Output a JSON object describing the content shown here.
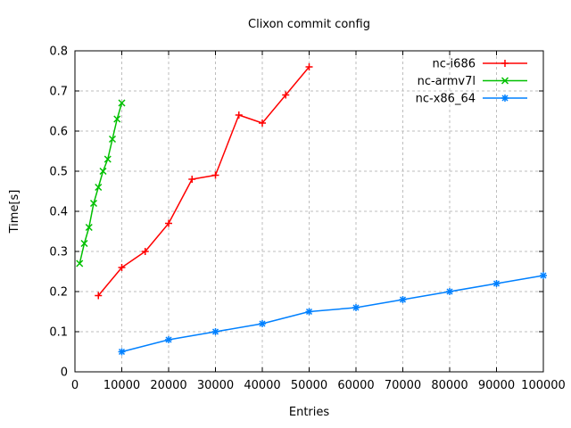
{
  "window": {
    "background": "#ffffff"
  },
  "chart_data": {
    "type": "line",
    "title": "Clixon commit config",
    "xlabel": "Entries",
    "ylabel": "Time[s]",
    "xlim": [
      0,
      100000
    ],
    "ylim": [
      0,
      0.8
    ],
    "grid": true,
    "legend_position": "top-right-inside",
    "x_ticks": {
      "values": [
        0,
        10000,
        20000,
        30000,
        40000,
        50000,
        60000,
        70000,
        80000,
        90000,
        100000
      ],
      "labels": [
        "0",
        "10000",
        "20000",
        "30000",
        "40000",
        "50000",
        "60000",
        "70000",
        "80000",
        "90000",
        "100000"
      ]
    },
    "y_ticks": {
      "values": [
        0,
        0.1,
        0.2,
        0.3,
        0.4,
        0.5,
        0.6,
        0.7,
        0.8
      ],
      "labels": [
        "0",
        "0.1",
        "0.2",
        "0.3",
        "0.4",
        "0.5",
        "0.6",
        "0.7",
        "0.8"
      ]
    },
    "series": [
      {
        "name": "nc-i686",
        "color": "#ff0000",
        "marker": "plus",
        "x": [
          5000,
          10000,
          15000,
          20000,
          25000,
          30000,
          35000,
          40000,
          45000,
          50000
        ],
        "y": [
          0.19,
          0.26,
          0.3,
          0.37,
          0.48,
          0.49,
          0.64,
          0.62,
          0.69,
          0.76
        ]
      },
      {
        "name": "nc-armv7l",
        "color": "#00c000",
        "marker": "cross",
        "x": [
          1000,
          2000,
          3000,
          4000,
          5000,
          6000,
          7000,
          8000,
          9000,
          10000
        ],
        "y": [
          0.27,
          0.32,
          0.36,
          0.42,
          0.46,
          0.5,
          0.53,
          0.58,
          0.63,
          0.67
        ]
      },
      {
        "name": "nc-x86_64",
        "color": "#0080ff",
        "marker": "asterisk",
        "x": [
          10000,
          20000,
          30000,
          40000,
          50000,
          60000,
          70000,
          80000,
          90000,
          100000
        ],
        "y": [
          0.05,
          0.08,
          0.1,
          0.12,
          0.15,
          0.16,
          0.18,
          0.2,
          0.22,
          0.24
        ]
      }
    ],
    "colors": {
      "border": "#000000",
      "grid": "#bebebe",
      "text": "#000000",
      "background": "#ffffff"
    }
  }
}
